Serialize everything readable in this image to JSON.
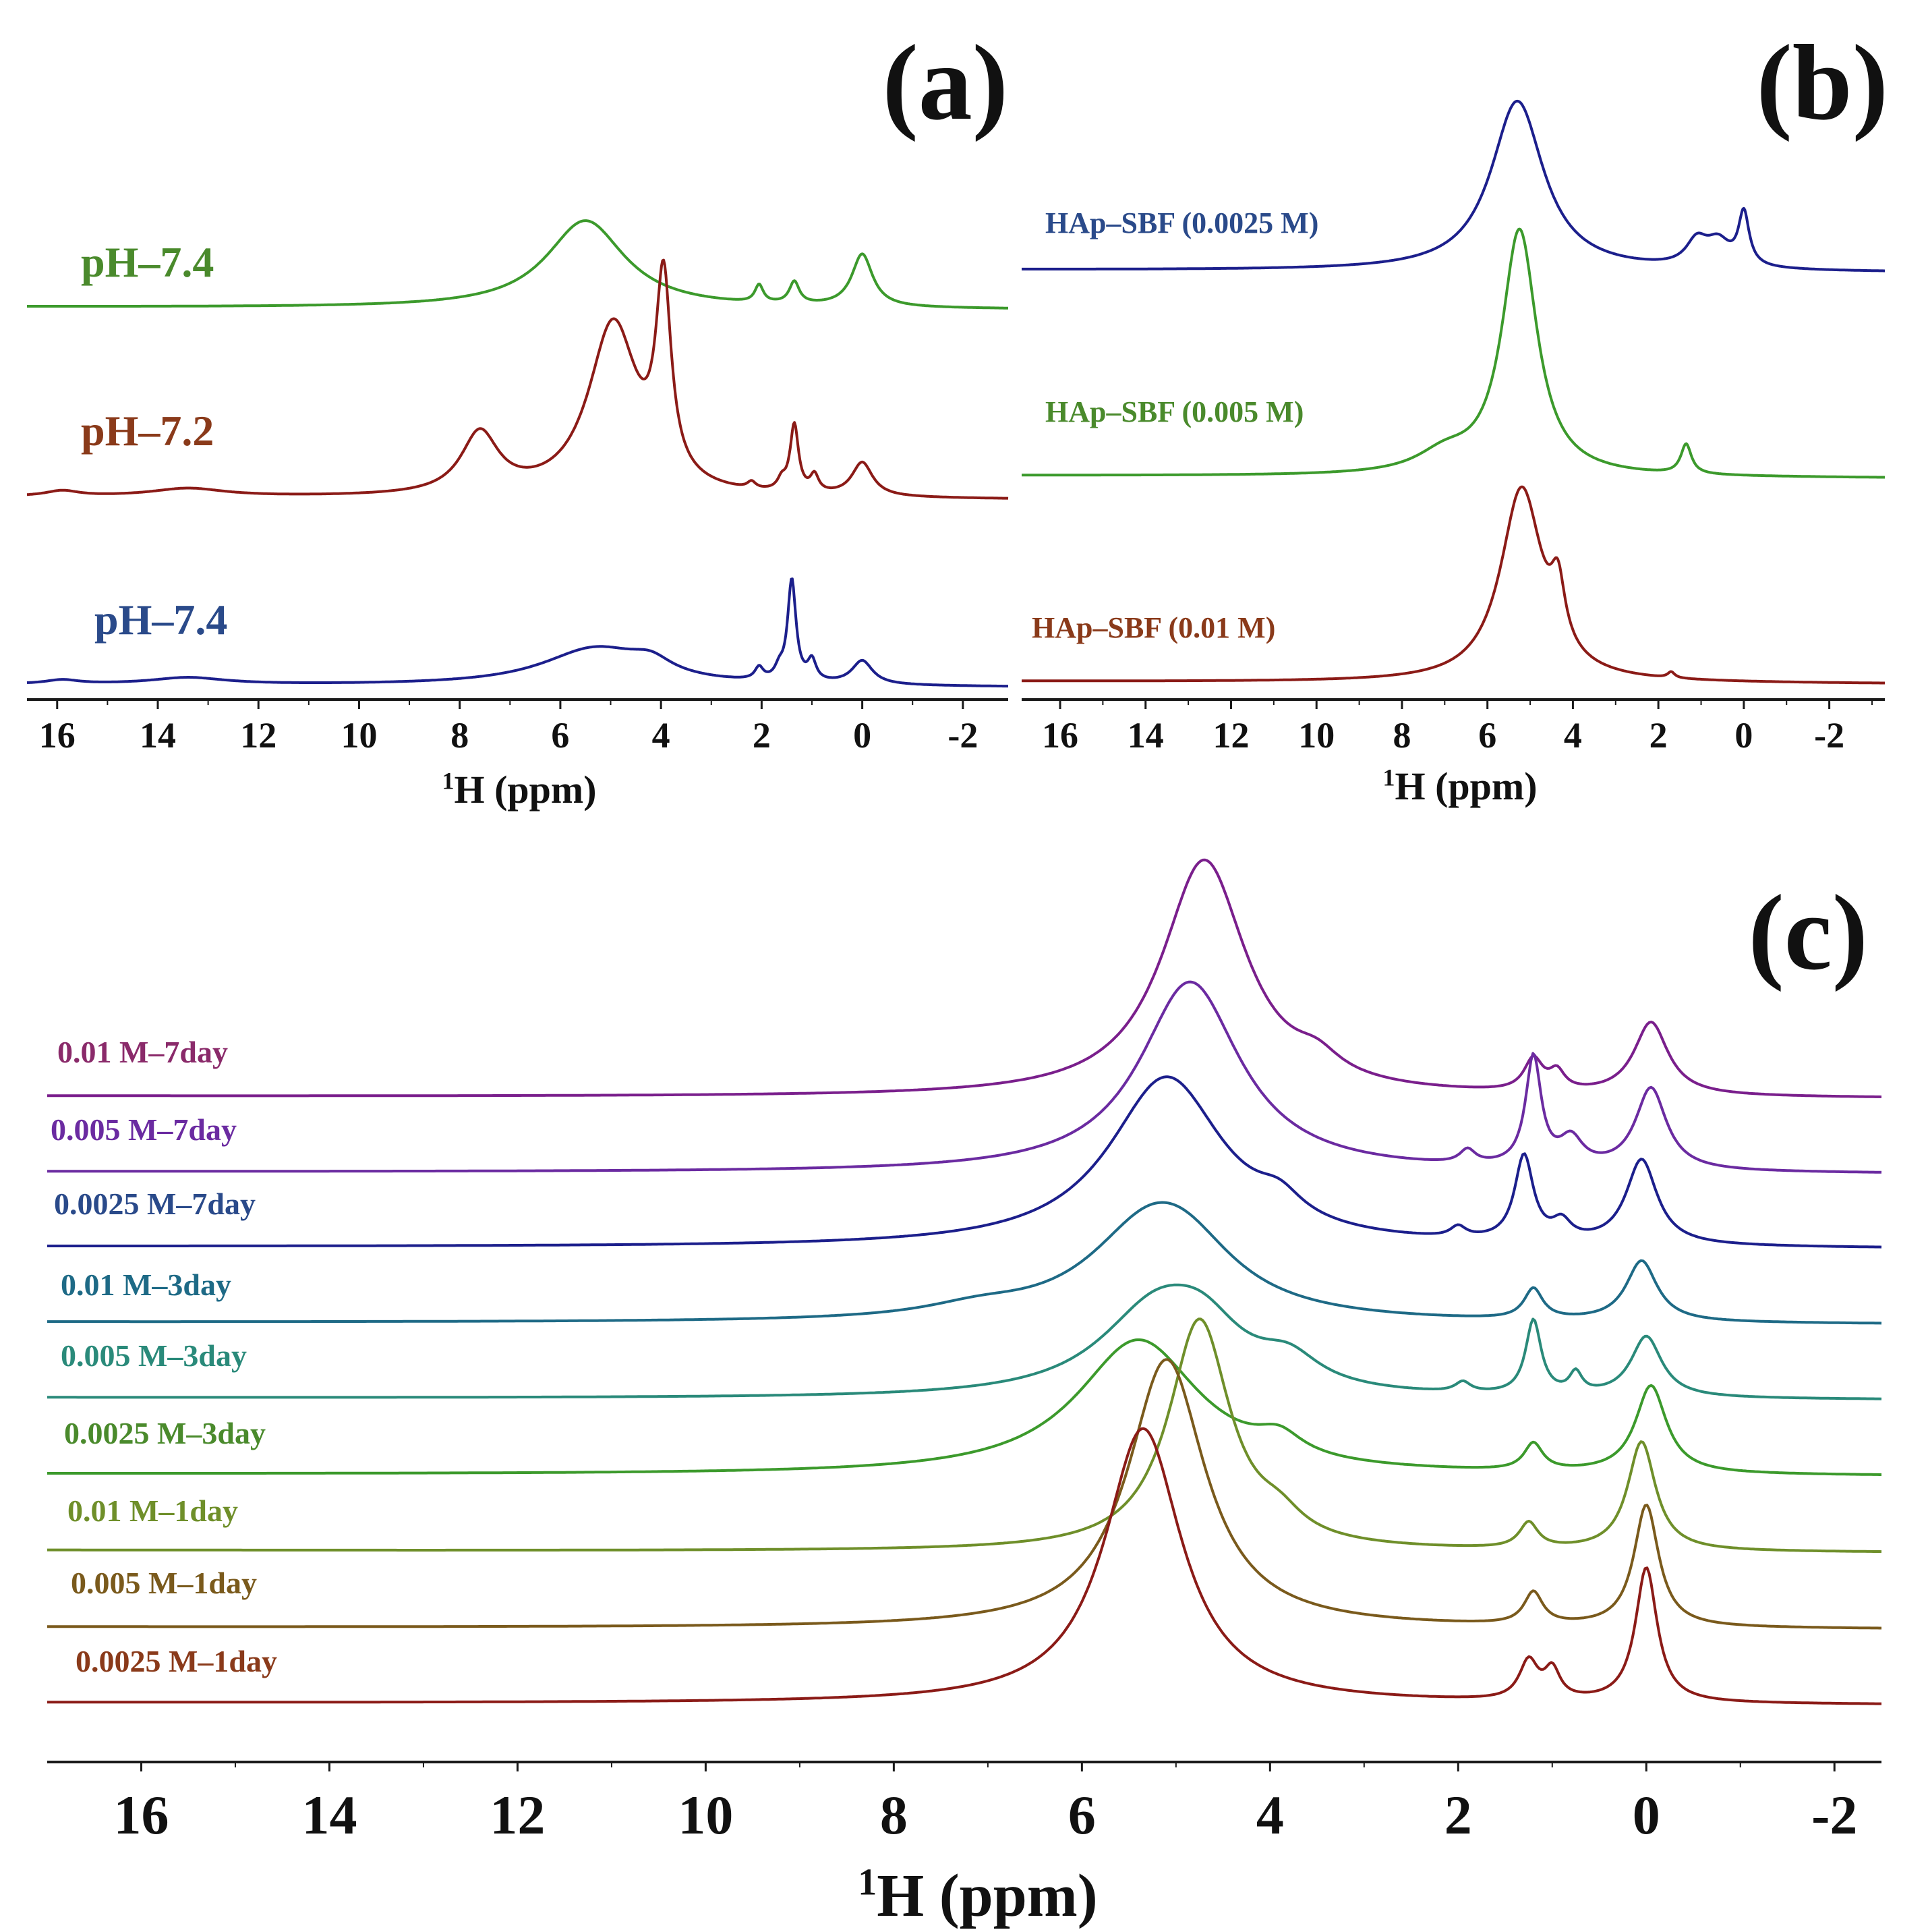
{
  "figure": {
    "description_free": true
  },
  "colors": {
    "axis": "#1a1a1a",
    "green": "#3c9a2c",
    "darkred": "#8b1b17",
    "navy": "#1c1f8c",
    "blue": "#1f4f95",
    "purple": "#7a1f8c",
    "violet": "#6b2ba1",
    "teal": "#1e6a86",
    "tealgreen": "#2a8a7a",
    "olive": "#6f8f2a",
    "brown": "#7a5a1c",
    "labelGreen": "#4a8a2c",
    "labelRed": "#8a3a1a",
    "labelBlue": "#2a4a8a",
    "labelPurple": "#8a2a6a"
  },
  "chart_data": [
    {
      "id": "a",
      "type": "line",
      "panel_label": "(a)",
      "xlabel_sup": "1",
      "xlabel_main": "H (ppm)",
      "xlim": [
        16.6,
        -2.9
      ],
      "xticks": [
        "16",
        "14",
        "12",
        "10",
        "8",
        "6",
        "4",
        "2",
        "0",
        "-2"
      ],
      "series": [
        {
          "name": "pH–7.4",
          "color_key": "green",
          "label_color_key": "labelGreen",
          "baseline_left": 0.0,
          "baseline_right": 0.0,
          "peaks": [
            {
              "pos": 5.5,
              "height": 1.0,
              "width": 0.95
            },
            {
              "pos": 2.05,
              "height": 0.2,
              "width": 0.1
            },
            {
              "pos": 1.35,
              "height": 0.25,
              "width": 0.12
            },
            {
              "pos": 0.0,
              "height": 0.6,
              "width": 0.25
            }
          ]
        },
        {
          "name": "pH–7.2",
          "color_key": "darkred",
          "label_color_key": "labelRed",
          "baseline_left": 0.0,
          "baseline_right": 0.0,
          "peaks": [
            {
              "pos": 15.9,
              "height": 0.08,
              "width": 0.4
            },
            {
              "pos": 13.4,
              "height": 0.12,
              "width": 0.9
            },
            {
              "pos": 7.6,
              "height": 0.9,
              "width": 0.45
            },
            {
              "pos": 4.95,
              "height": 2.55,
              "width": 0.6
            },
            {
              "pos": 3.95,
              "height": 2.85,
              "width": 0.18
            },
            {
              "pos": 2.2,
              "height": 0.1,
              "width": 0.1
            },
            {
              "pos": 1.6,
              "height": 0.15,
              "width": 0.1
            },
            {
              "pos": 1.35,
              "height": 1.0,
              "width": 0.1
            },
            {
              "pos": 0.95,
              "height": 0.25,
              "width": 0.1
            },
            {
              "pos": 0.0,
              "height": 0.5,
              "width": 0.25
            }
          ]
        },
        {
          "name": "pH–7.4",
          "color_key": "navy",
          "label_color_key": "labelBlue",
          "baseline_left": 0.0,
          "baseline_right": 0.0,
          "peaks": [
            {
              "pos": 15.9,
              "height": 0.06,
              "width": 0.4
            },
            {
              "pos": 13.4,
              "height": 0.1,
              "width": 0.9
            },
            {
              "pos": 5.3,
              "height": 0.55,
              "width": 1.3
            },
            {
              "pos": 4.2,
              "height": 0.2,
              "width": 0.5
            },
            {
              "pos": 2.05,
              "height": 0.18,
              "width": 0.1
            },
            {
              "pos": 1.65,
              "height": 0.15,
              "width": 0.1
            },
            {
              "pos": 1.4,
              "height": 1.5,
              "width": 0.1
            },
            {
              "pos": 1.0,
              "height": 0.3,
              "width": 0.1
            },
            {
              "pos": 0.0,
              "height": 0.35,
              "width": 0.25
            }
          ]
        }
      ]
    },
    {
      "id": "b",
      "type": "line",
      "panel_label": "(b)",
      "xlabel_sup": "1",
      "xlabel_main": "H (ppm)",
      "xlim": [
        16.9,
        -3.3
      ],
      "xticks": [
        "16",
        "14",
        "12",
        "10",
        "8",
        "6",
        "4",
        "2",
        "0",
        "-2"
      ],
      "series": [
        {
          "name": "HAp–SBF (0.0025 M)",
          "color_key": "navy",
          "label_color_key": "labelBlue",
          "peaks": [
            {
              "pos": 5.3,
              "height": 2.1,
              "width": 0.75
            },
            {
              "pos": 1.1,
              "height": 0.3,
              "width": 0.3
            },
            {
              "pos": 0.6,
              "height": 0.3,
              "width": 0.35
            },
            {
              "pos": 0.0,
              "height": 0.65,
              "width": 0.15
            }
          ]
        },
        {
          "name": "HAp–SBF (0.005 M)",
          "color_key": "green",
          "label_color_key": "labelGreen",
          "peaks": [
            {
              "pos": 5.25,
              "height": 3.3,
              "width": 0.5
            },
            {
              "pos": 7.0,
              "height": 0.25,
              "width": 0.8
            },
            {
              "pos": 1.35,
              "height": 0.4,
              "width": 0.15
            }
          ]
        },
        {
          "name": "HAp–SBF (0.01 M)",
          "color_key": "darkred",
          "label_color_key": "labelRed",
          "peaks": [
            {
              "pos": 5.2,
              "height": 2.6,
              "width": 0.6
            },
            {
              "pos": 4.35,
              "height": 0.8,
              "width": 0.2
            },
            {
              "pos": 1.7,
              "height": 0.08,
              "width": 0.1
            }
          ]
        }
      ]
    },
    {
      "id": "c",
      "type": "line",
      "panel_label": "(c)",
      "xlabel_sup": "1",
      "xlabel_main": "H (ppm)",
      "xlim": [
        17.0,
        -2.5
      ],
      "xticks": [
        "16",
        "14",
        "12",
        "10",
        "8",
        "6",
        "4",
        "2",
        "0",
        "-2"
      ],
      "series": [
        {
          "name": "0.01 M–7day",
          "color_key": "purple",
          "label_color_key": "labelPurple",
          "peaks": [
            {
              "pos": 4.7,
              "height": 2.6,
              "width": 0.55
            },
            {
              "pos": 3.5,
              "height": 0.2,
              "width": 0.3
            },
            {
              "pos": 1.2,
              "height": 0.35,
              "width": 0.12
            },
            {
              "pos": 0.95,
              "height": 0.2,
              "width": 0.1
            },
            {
              "pos": -0.05,
              "height": 0.8,
              "width": 0.22
            }
          ]
        },
        {
          "name": "0.005 M–7day",
          "color_key": "violet",
          "label_color_key": "violet",
          "peaks": [
            {
              "pos": 4.85,
              "height": 2.1,
              "width": 0.65
            },
            {
              "pos": 1.9,
              "height": 0.15,
              "width": 0.1
            },
            {
              "pos": 1.2,
              "height": 1.2,
              "width": 0.1
            },
            {
              "pos": 0.8,
              "height": 0.3,
              "width": 0.15
            },
            {
              "pos": -0.05,
              "height": 0.9,
              "width": 0.2
            }
          ]
        },
        {
          "name": "0.0025 M–7day",
          "color_key": "navy",
          "label_color_key": "labelBlue",
          "peaks": [
            {
              "pos": 5.1,
              "height": 2.4,
              "width": 0.75
            },
            {
              "pos": 3.9,
              "height": 0.3,
              "width": 0.3
            },
            {
              "pos": 2.0,
              "height": 0.15,
              "width": 0.1
            },
            {
              "pos": 1.3,
              "height": 1.2,
              "width": 0.12
            },
            {
              "pos": 0.9,
              "height": 0.25,
              "width": 0.12
            },
            {
              "pos": 0.05,
              "height": 1.2,
              "width": 0.2
            }
          ]
        },
        {
          "name": "0.01 M–3day",
          "color_key": "teal",
          "label_color_key": "teal",
          "peaks": [
            {
              "pos": 5.3,
              "height": 1.2,
              "width": 0.8
            },
            {
              "pos": 4.9,
              "height": 0.7,
              "width": 0.7
            },
            {
              "pos": 7.1,
              "height": 0.15,
              "width": 0.7
            },
            {
              "pos": 1.2,
              "height": 0.45,
              "width": 0.12
            },
            {
              "pos": 0.05,
              "height": 0.9,
              "width": 0.2
            }
          ]
        },
        {
          "name": "0.005 M–3day",
          "color_key": "tealgreen",
          "label_color_key": "tealgreen",
          "peaks": [
            {
              "pos": 5.2,
              "height": 1.3,
              "width": 0.75
            },
            {
              "pos": 4.7,
              "height": 0.6,
              "width": 0.5
            },
            {
              "pos": 3.8,
              "height": 0.4,
              "width": 0.4
            },
            {
              "pos": 1.95,
              "height": 0.15,
              "width": 0.1
            },
            {
              "pos": 1.2,
              "height": 1.1,
              "width": 0.1
            },
            {
              "pos": 0.75,
              "height": 0.3,
              "width": 0.08
            },
            {
              "pos": 0.0,
              "height": 0.9,
              "width": 0.2
            }
          ]
        },
        {
          "name": "0.0025 M–3day",
          "color_key": "green",
          "label_color_key": "labelGreen",
          "peaks": [
            {
              "pos": 5.4,
              "height": 2.0,
              "width": 0.8
            },
            {
              "pos": 3.9,
              "height": 0.3,
              "width": 0.3
            },
            {
              "pos": 1.2,
              "height": 0.4,
              "width": 0.12
            },
            {
              "pos": -0.05,
              "height": 1.3,
              "width": 0.2
            }
          ]
        },
        {
          "name": "0.01 M–1day",
          "color_key": "olive",
          "label_color_key": "olive",
          "peaks": [
            {
              "pos": 4.75,
              "height": 3.6,
              "width": 0.4
            },
            {
              "pos": 3.9,
              "height": 0.3,
              "width": 0.3
            },
            {
              "pos": 1.25,
              "height": 0.4,
              "width": 0.12
            },
            {
              "pos": 0.05,
              "height": 1.7,
              "width": 0.18
            }
          ]
        },
        {
          "name": "0.005 M–1day",
          "color_key": "brown",
          "label_color_key": "brown",
          "peaks": [
            {
              "pos": 5.1,
              "height": 4.2,
              "width": 0.5
            },
            {
              "pos": 1.2,
              "height": 0.5,
              "width": 0.12
            },
            {
              "pos": 0.0,
              "height": 1.9,
              "width": 0.16
            }
          ]
        },
        {
          "name": "0.0025 M–1day",
          "color_key": "darkred",
          "label_color_key": "labelRed",
          "peaks": [
            {
              "pos": 5.35,
              "height": 4.3,
              "width": 0.5
            },
            {
              "pos": 1.25,
              "height": 0.6,
              "width": 0.12
            },
            {
              "pos": 1.0,
              "height": 0.45,
              "width": 0.1
            },
            {
              "pos": 0.0,
              "height": 2.1,
              "width": 0.14
            }
          ]
        }
      ]
    }
  ]
}
